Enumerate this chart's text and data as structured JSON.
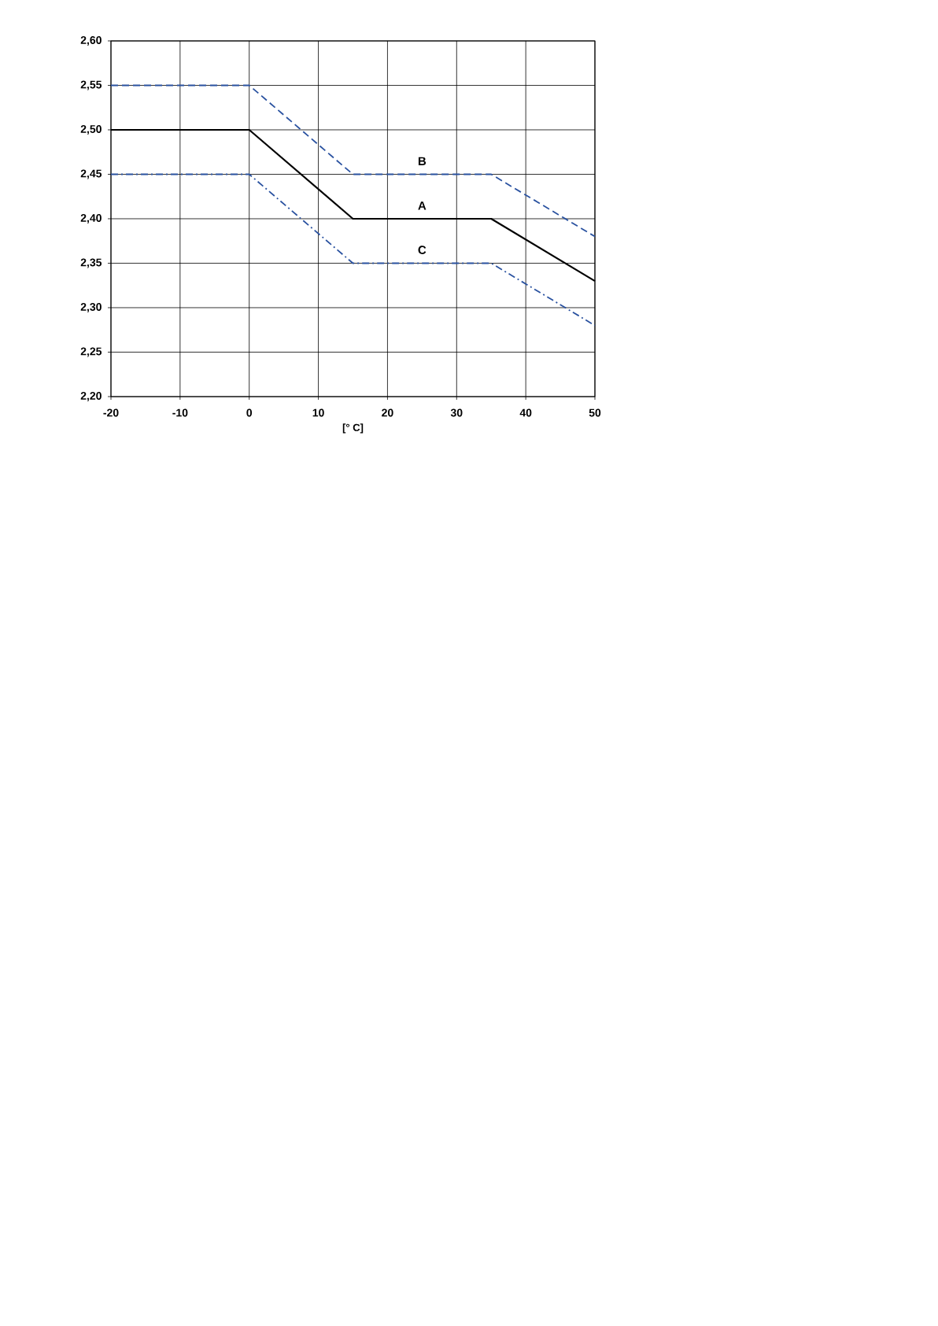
{
  "chart_data": {
    "type": "line",
    "xlabel": "[° C]",
    "x": [
      -20,
      0,
      15,
      35,
      50
    ],
    "series": [
      {
        "name": "A",
        "color": "#000000",
        "line_style": "solid",
        "values": [
          2.5,
          2.5,
          2.4,
          2.4,
          2.33
        ]
      },
      {
        "name": "B",
        "color": "#2a52a0",
        "line_style": "dashed",
        "values": [
          2.55,
          2.55,
          2.45,
          2.45,
          2.38
        ]
      },
      {
        "name": "C",
        "color": "#2a52a0",
        "line_style": "dashdot",
        "values": [
          2.45,
          2.45,
          2.35,
          2.35,
          2.28
        ]
      }
    ],
    "xlim": [
      -20,
      50
    ],
    "xticks": [
      -20,
      -10,
      0,
      10,
      20,
      30,
      40,
      50
    ],
    "ylim": [
      2.2,
      2.6
    ],
    "yticks": [
      {
        "value": 2.2,
        "label": "2,20"
      },
      {
        "value": 2.25,
        "label": "2,25"
      },
      {
        "value": 2.3,
        "label": "2,30"
      },
      {
        "value": 2.35,
        "label": "2,35"
      },
      {
        "value": 2.4,
        "label": "2,40"
      },
      {
        "value": 2.45,
        "label": "2,45"
      },
      {
        "value": 2.5,
        "label": "2,50"
      },
      {
        "value": 2.55,
        "label": "2,55"
      },
      {
        "value": 2.6,
        "label": "2,60"
      }
    ],
    "grid": true,
    "marker": "none"
  }
}
